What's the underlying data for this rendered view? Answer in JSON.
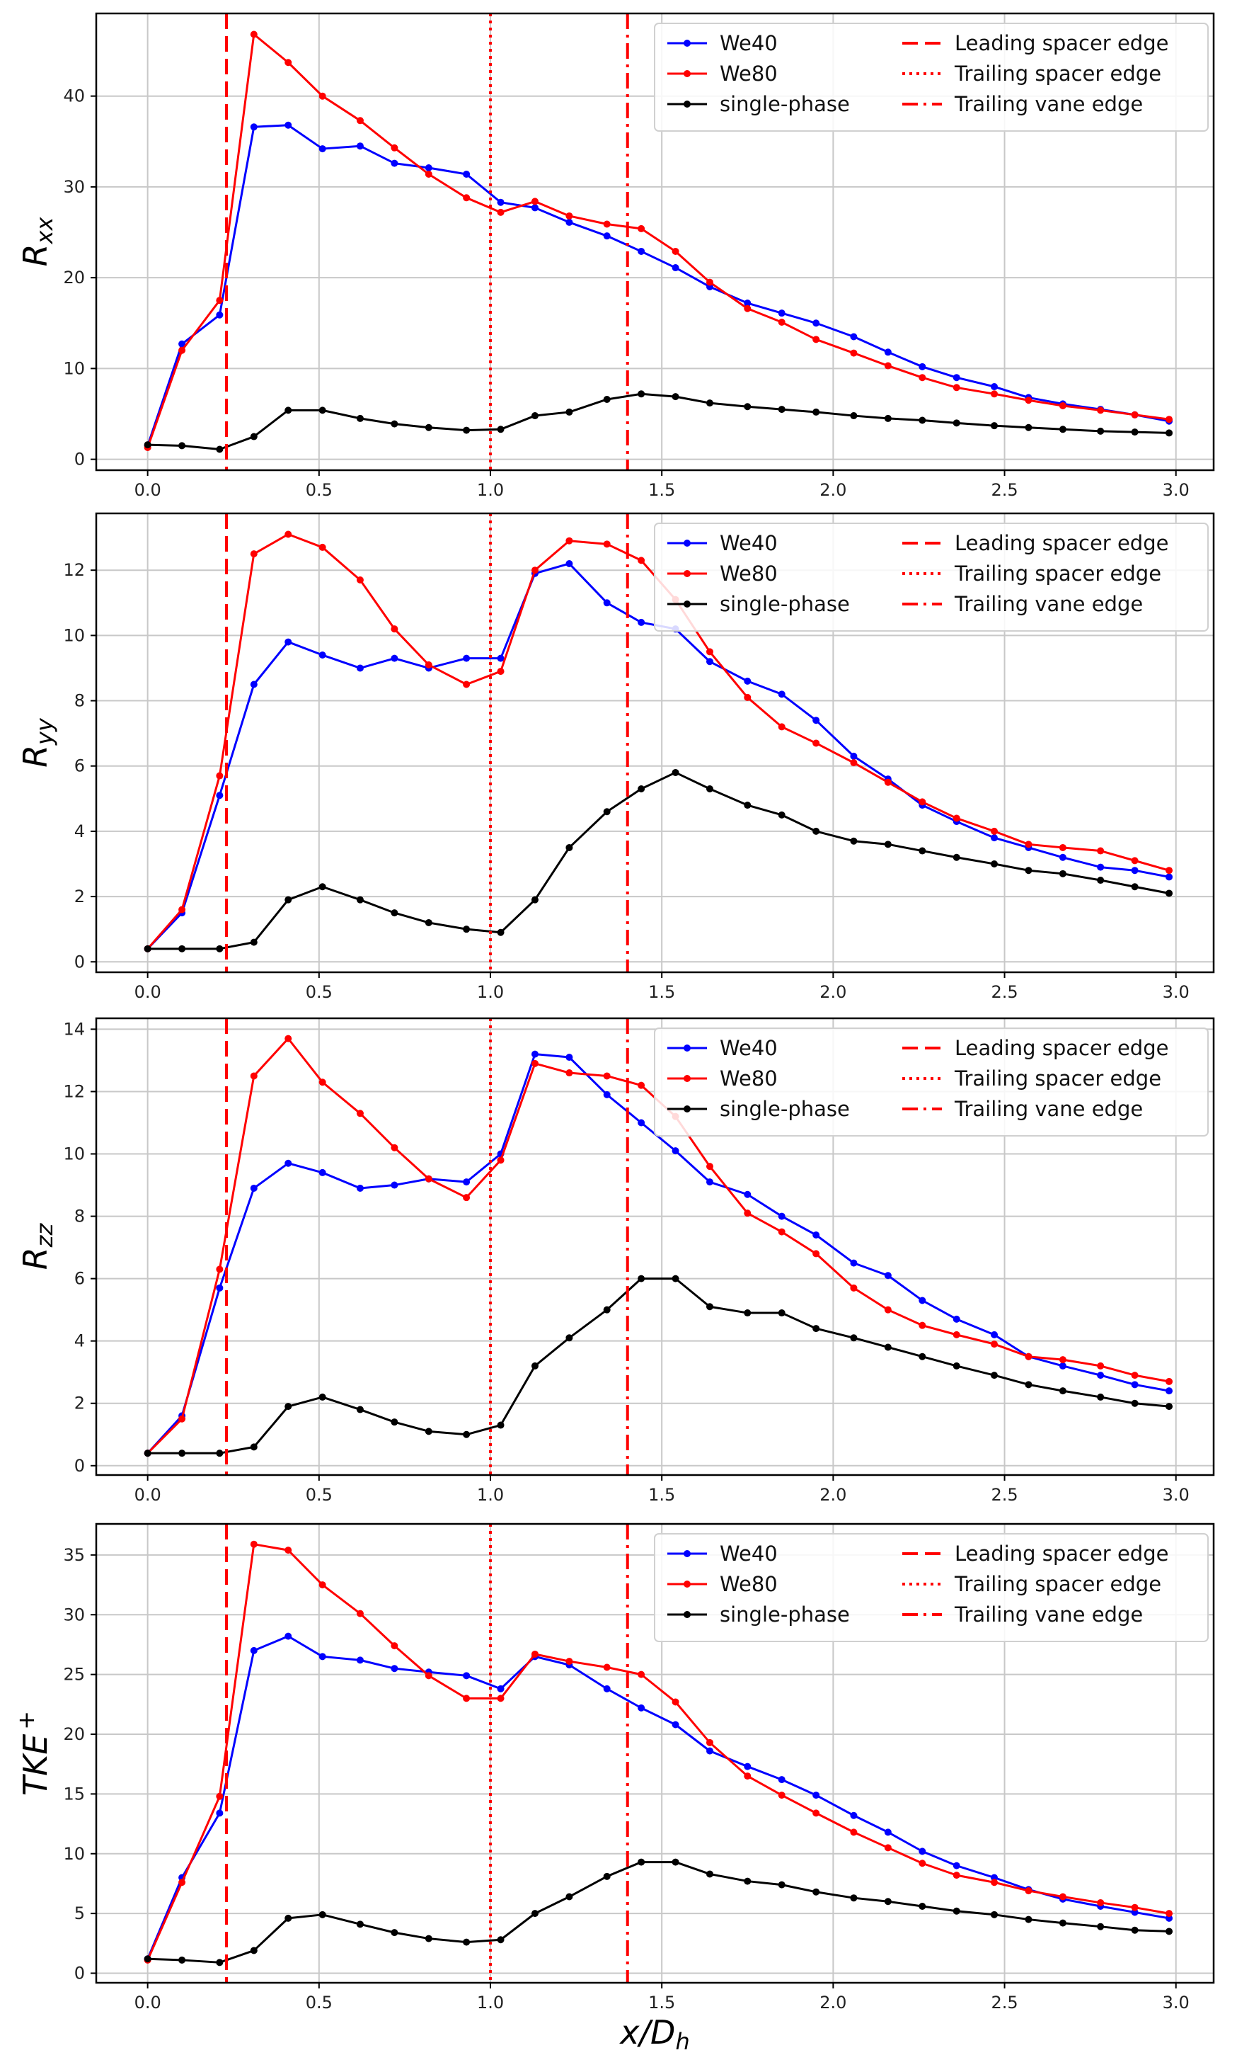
{
  "chart_data": [
    {
      "type": "line",
      "ylabel": "R_xx",
      "ylabel_main": "R",
      "ylabel_sub": "xx",
      "xlim": [
        -0.15,
        3.11
      ],
      "ylim": [
        -1.2,
        49.1
      ],
      "yticks": [
        0,
        10,
        20,
        30,
        40
      ],
      "ytick_labels": [
        "0",
        "10",
        "20",
        "30",
        "40"
      ],
      "xticks": [
        0,
        0.5,
        1.0,
        1.5,
        2.0,
        2.5,
        3.0
      ],
      "xtick_labels": [
        "0.0",
        "0.5",
        "1.0",
        "1.5",
        "2.0",
        "2.5",
        "3.0"
      ],
      "grid": true,
      "legend_position": "top-right",
      "x": [
        0,
        0.1,
        0.21,
        0.31,
        0.41,
        0.51,
        0.62,
        0.72,
        0.82,
        0.93,
        1.03,
        1.13,
        1.23,
        1.34,
        1.44,
        1.54,
        1.64,
        1.75,
        1.85,
        1.95,
        2.06,
        2.16,
        2.26,
        2.36,
        2.47,
        2.57,
        2.67,
        2.78,
        2.88,
        2.98
      ],
      "series": [
        {
          "name": "We40",
          "color": "#0000ff",
          "values": [
            1.5,
            12.7,
            15.9,
            36.6,
            36.8,
            34.2,
            34.5,
            32.6,
            32.1,
            31.4,
            28.3,
            27.7,
            26.1,
            24.6,
            22.9,
            21.1,
            19.0,
            17.2,
            16.1,
            15.0,
            13.5,
            11.8,
            10.2,
            9.0,
            8.0,
            6.8,
            6.1,
            5.5,
            4.9,
            4.2
          ]
        },
        {
          "name": "We80",
          "color": "#ff0000",
          "values": [
            1.3,
            12.0,
            17.5,
            46.8,
            43.7,
            40.0,
            37.3,
            34.3,
            31.4,
            28.8,
            27.2,
            28.4,
            26.8,
            25.9,
            25.4,
            22.9,
            19.5,
            16.6,
            15.1,
            13.2,
            11.7,
            10.3,
            9.0,
            7.9,
            7.2,
            6.5,
            5.9,
            5.4,
            4.9,
            4.4
          ]
        },
        {
          "name": "single-phase",
          "color": "#000000",
          "values": [
            1.6,
            1.5,
            1.1,
            2.5,
            5.4,
            5.4,
            4.5,
            3.9,
            3.5,
            3.2,
            3.3,
            4.8,
            5.2,
            6.6,
            7.2,
            6.9,
            6.2,
            5.8,
            5.5,
            5.2,
            4.8,
            4.5,
            4.3,
            4.0,
            3.7,
            3.5,
            3.3,
            3.1,
            3.0,
            2.9
          ]
        }
      ],
      "vlines": [
        {
          "name": "Leading spacer edge",
          "x": 0.23,
          "style": "dashed",
          "color": "#ff0000"
        },
        {
          "name": "Trailing spacer edge",
          "x": 1.0,
          "style": "dotted",
          "color": "#ff0000"
        },
        {
          "name": "Trailing vane edge",
          "x": 1.4,
          "style": "dashdot",
          "color": "#ff0000"
        }
      ]
    },
    {
      "type": "line",
      "ylabel": "R_yy",
      "ylabel_main": "R",
      "ylabel_sub": "yy",
      "xlim": [
        -0.15,
        3.11
      ],
      "ylim": [
        -0.32,
        13.74
      ],
      "yticks": [
        0,
        2,
        4,
        6,
        8,
        10,
        12
      ],
      "ytick_labels": [
        "0",
        "2",
        "4",
        "6",
        "8",
        "10",
        "12"
      ],
      "xticks": [
        0,
        0.5,
        1.0,
        1.5,
        2.0,
        2.5,
        3.0
      ],
      "xtick_labels": [
        "0.0",
        "0.5",
        "1.0",
        "1.5",
        "2.0",
        "2.5",
        "3.0"
      ],
      "grid": true,
      "legend_position": "top-right",
      "x": [
        0,
        0.1,
        0.21,
        0.31,
        0.41,
        0.51,
        0.62,
        0.72,
        0.82,
        0.93,
        1.03,
        1.13,
        1.23,
        1.34,
        1.44,
        1.54,
        1.64,
        1.75,
        1.85,
        1.95,
        2.06,
        2.16,
        2.26,
        2.36,
        2.47,
        2.57,
        2.67,
        2.78,
        2.88,
        2.98
      ],
      "series": [
        {
          "name": "We40",
          "color": "#0000ff",
          "values": [
            0.4,
            1.5,
            5.1,
            8.5,
            9.8,
            9.4,
            9.0,
            9.3,
            9.0,
            9.3,
            9.3,
            11.9,
            12.2,
            11.0,
            10.4,
            10.2,
            9.2,
            8.6,
            8.2,
            7.4,
            6.3,
            5.6,
            4.8,
            4.3,
            3.8,
            3.5,
            3.2,
            2.9,
            2.8,
            2.6
          ]
        },
        {
          "name": "We80",
          "color": "#ff0000",
          "values": [
            0.4,
            1.6,
            5.7,
            12.5,
            13.1,
            12.7,
            11.7,
            10.2,
            9.1,
            8.5,
            8.9,
            12.0,
            12.9,
            12.8,
            12.3,
            11.1,
            9.5,
            8.1,
            7.2,
            6.7,
            6.1,
            5.5,
            4.9,
            4.4,
            4.0,
            3.6,
            3.5,
            3.4,
            3.1,
            2.8
          ]
        },
        {
          "name": "single-phase",
          "color": "#000000",
          "values": [
            0.4,
            0.4,
            0.4,
            0.6,
            1.9,
            2.3,
            1.9,
            1.5,
            1.2,
            1.0,
            0.9,
            1.9,
            3.5,
            4.6,
            5.3,
            5.8,
            5.3,
            4.8,
            4.5,
            4.0,
            3.7,
            3.6,
            3.4,
            3.2,
            3.0,
            2.8,
            2.7,
            2.5,
            2.3,
            2.1
          ]
        }
      ],
      "vlines": [
        {
          "name": "Leading spacer edge",
          "x": 0.23,
          "style": "dashed",
          "color": "#ff0000"
        },
        {
          "name": "Trailing spacer edge",
          "x": 1.0,
          "style": "dotted",
          "color": "#ff0000"
        },
        {
          "name": "Trailing vane edge",
          "x": 1.4,
          "style": "dashdot",
          "color": "#ff0000"
        }
      ]
    },
    {
      "type": "line",
      "ylabel": "R_zz",
      "ylabel_main": "R",
      "ylabel_sub": "zz",
      "xlim": [
        -0.15,
        3.11
      ],
      "ylim": [
        -0.3,
        14.35
      ],
      "yticks": [
        0,
        2,
        4,
        6,
        8,
        10,
        12,
        14
      ],
      "ytick_labels": [
        "0",
        "2",
        "4",
        "6",
        "8",
        "10",
        "12",
        "14"
      ],
      "xticks": [
        0,
        0.5,
        1.0,
        1.5,
        2.0,
        2.5,
        3.0
      ],
      "xtick_labels": [
        "0.0",
        "0.5",
        "1.0",
        "1.5",
        "2.0",
        "2.5",
        "3.0"
      ],
      "grid": true,
      "legend_position": "top-right",
      "x": [
        0,
        0.1,
        0.21,
        0.31,
        0.41,
        0.51,
        0.62,
        0.72,
        0.82,
        0.93,
        1.03,
        1.13,
        1.23,
        1.34,
        1.44,
        1.54,
        1.64,
        1.75,
        1.85,
        1.95,
        2.06,
        2.16,
        2.26,
        2.36,
        2.47,
        2.57,
        2.67,
        2.78,
        2.88,
        2.98
      ],
      "series": [
        {
          "name": "We40",
          "color": "#0000ff",
          "values": [
            0.4,
            1.6,
            5.7,
            8.9,
            9.7,
            9.4,
            8.9,
            9.0,
            9.2,
            9.1,
            10.0,
            13.2,
            13.1,
            11.9,
            11.0,
            10.1,
            9.1,
            8.7,
            8.0,
            7.4,
            6.5,
            6.1,
            5.3,
            4.7,
            4.2,
            3.5,
            3.2,
            2.9,
            2.6,
            2.4
          ]
        },
        {
          "name": "We80",
          "color": "#ff0000",
          "values": [
            0.4,
            1.5,
            6.3,
            12.5,
            13.7,
            12.3,
            11.3,
            10.2,
            9.2,
            8.6,
            9.8,
            12.9,
            12.6,
            12.5,
            12.2,
            11.2,
            9.6,
            8.1,
            7.5,
            6.8,
            5.7,
            5.0,
            4.5,
            4.2,
            3.9,
            3.5,
            3.4,
            3.2,
            2.9,
            2.7
          ]
        },
        {
          "name": "single-phase",
          "color": "#000000",
          "values": [
            0.4,
            0.4,
            0.4,
            0.6,
            1.9,
            2.2,
            1.8,
            1.4,
            1.1,
            1.0,
            1.3,
            3.2,
            4.1,
            5.0,
            6.0,
            6.0,
            5.1,
            4.9,
            4.9,
            4.4,
            4.1,
            3.8,
            3.5,
            3.2,
            2.9,
            2.6,
            2.4,
            2.2,
            2.0,
            1.9
          ]
        }
      ],
      "vlines": [
        {
          "name": "Leading spacer edge",
          "x": 0.23,
          "style": "dashed",
          "color": "#ff0000"
        },
        {
          "name": "Trailing spacer edge",
          "x": 1.0,
          "style": "dotted",
          "color": "#ff0000"
        },
        {
          "name": "Trailing vane edge",
          "x": 1.4,
          "style": "dashdot",
          "color": "#ff0000"
        }
      ]
    },
    {
      "type": "line",
      "ylabel": "TKE+",
      "ylabel_main": "TKE",
      "ylabel_sup": "+",
      "xlabel": "x/D_h",
      "xlabel_main": "x/D",
      "xlabel_sub": "h",
      "xlim": [
        -0.15,
        3.11
      ],
      "ylim": [
        -0.8,
        37.6
      ],
      "yticks": [
        0,
        5,
        10,
        15,
        20,
        25,
        30,
        35
      ],
      "ytick_labels": [
        "0",
        "5",
        "10",
        "15",
        "20",
        "25",
        "30",
        "35"
      ],
      "xticks": [
        0,
        0.5,
        1.0,
        1.5,
        2.0,
        2.5,
        3.0
      ],
      "xtick_labels": [
        "0.0",
        "0.5",
        "1.0",
        "1.5",
        "2.0",
        "2.5",
        "3.0"
      ],
      "grid": true,
      "legend_position": "top-right",
      "x": [
        0,
        0.1,
        0.21,
        0.31,
        0.41,
        0.51,
        0.62,
        0.72,
        0.82,
        0.93,
        1.03,
        1.13,
        1.23,
        1.34,
        1.44,
        1.54,
        1.64,
        1.75,
        1.85,
        1.95,
        2.06,
        2.16,
        2.26,
        2.36,
        2.47,
        2.57,
        2.67,
        2.78,
        2.88,
        2.98
      ],
      "series": [
        {
          "name": "We40",
          "color": "#0000ff",
          "values": [
            1.2,
            8.0,
            13.4,
            27.0,
            28.2,
            26.5,
            26.2,
            25.5,
            25.2,
            24.9,
            23.8,
            26.5,
            25.8,
            23.8,
            22.2,
            20.8,
            18.6,
            17.3,
            16.2,
            14.9,
            13.2,
            11.8,
            10.2,
            9.0,
            8.0,
            7.0,
            6.2,
            5.6,
            5.1,
            4.6
          ]
        },
        {
          "name": "We80",
          "color": "#ff0000",
          "values": [
            1.1,
            7.6,
            14.8,
            35.9,
            35.4,
            32.5,
            30.1,
            27.4,
            24.9,
            23.0,
            23.0,
            26.7,
            26.1,
            25.6,
            25.0,
            22.7,
            19.3,
            16.5,
            14.9,
            13.4,
            11.8,
            10.5,
            9.2,
            8.2,
            7.6,
            6.9,
            6.4,
            5.9,
            5.5,
            5.0
          ]
        },
        {
          "name": "single-phase",
          "color": "#000000",
          "values": [
            1.2,
            1.1,
            0.9,
            1.9,
            4.6,
            4.9,
            4.1,
            3.4,
            2.9,
            2.6,
            2.8,
            5.0,
            6.4,
            8.1,
            9.3,
            9.3,
            8.3,
            7.7,
            7.4,
            6.8,
            6.3,
            6.0,
            5.6,
            5.2,
            4.9,
            4.5,
            4.2,
            3.9,
            3.6,
            3.5
          ]
        }
      ],
      "vlines": [
        {
          "name": "Leading spacer edge",
          "x": 0.23,
          "style": "dashed",
          "color": "#ff0000"
        },
        {
          "name": "Trailing spacer edge",
          "x": 1.0,
          "style": "dotted",
          "color": "#ff0000"
        },
        {
          "name": "Trailing vane edge",
          "x": 1.4,
          "style": "dashdot",
          "color": "#ff0000"
        }
      ]
    }
  ]
}
